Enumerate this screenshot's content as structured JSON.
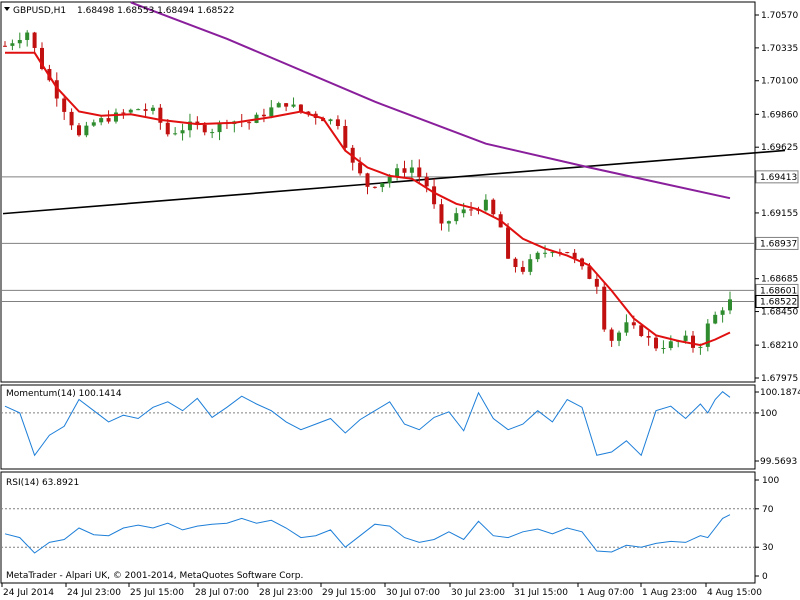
{
  "main_panel": {
    "header_symbol": "GBPUSD,H1",
    "header_ohlc": "1.68498 1.68553 1.68494 1.68522",
    "price_ticks": [
      "1.70570",
      "1.70335",
      "1.70100",
      "1.69860",
      "1.69625",
      "1.69390",
      "1.69155",
      "1.68920",
      "1.68685",
      "1.68450",
      "1.68210",
      "1.67975"
    ],
    "horizontal_levels": [
      {
        "price": 1.69413,
        "label": "1.69413"
      },
      {
        "price": 1.68937,
        "label": "1.68937"
      },
      {
        "price": 1.68601,
        "label": "1.68601"
      }
    ],
    "current_price": {
      "price": 1.68522,
      "label": "1.68522"
    },
    "ylim": [
      1.6788,
      1.7069
    ]
  },
  "momentum_panel": {
    "title": "Momentum(14) 100.1414",
    "ticks": [
      "100.1874",
      "100",
      "99.5693"
    ],
    "ylim": [
      99.55,
      100.22
    ],
    "reference_level": 100
  },
  "rsi_panel": {
    "title": "RSI(14) 63.8921",
    "ticks": [
      "100",
      "70",
      "30",
      "0"
    ],
    "levels": [
      70,
      30
    ]
  },
  "footer": {
    "copyright": "MetaTrader - Alpari UK, © 2001-2014, MetaQuotes Software Corp."
  },
  "time_axis": {
    "labels": [
      "24 Jul 2014",
      "24 Jul 23:00",
      "25 Jul 15:00",
      "28 Jul 07:00",
      "28 Jul 23:00",
      "29 Jul 15:00",
      "30 Jul 07:00",
      "30 Jul 23:00",
      "31 Jul 15:00",
      "1 Aug 07:00",
      "1 Aug 23:00",
      "4 Aug 15:00"
    ]
  },
  "colors": {
    "bull_candle": "#2e8b2e",
    "bear_candle": "#c01010",
    "ma_fast": "#e01010",
    "ma_slow": "#8a1f9c",
    "trendline": "#000000",
    "oscillator": "#1e7fd8",
    "level_line": "#808080"
  },
  "chart_data": {
    "type": "candlestick",
    "symbol": "GBPUSD",
    "timeframe": "H1",
    "last_close": 1.68522,
    "close_path": [
      [
        0,
        1.7035
      ],
      [
        3,
        1.7045
      ],
      [
        5,
        1.702
      ],
      [
        8,
        1.699
      ],
      [
        10,
        1.697
      ],
      [
        12,
        1.698
      ],
      [
        15,
        1.6985
      ],
      [
        18,
        1.699
      ],
      [
        20,
        1.6988
      ],
      [
        22,
        1.6972
      ],
      [
        25,
        1.6978
      ],
      [
        28,
        1.6975
      ],
      [
        30,
        1.6982
      ],
      [
        33,
        1.698
      ],
      [
        36,
        1.699
      ],
      [
        38,
        1.6994
      ],
      [
        40,
        1.6988
      ],
      [
        42,
        1.6985
      ],
      [
        45,
        1.698
      ],
      [
        47,
        1.695
      ],
      [
        49,
        1.6935
      ],
      [
        51,
        1.6938
      ],
      [
        53,
        1.6945
      ],
      [
        55,
        1.6948
      ],
      [
        57,
        1.6935
      ],
      [
        58,
        1.692
      ],
      [
        59,
        1.6905
      ],
      [
        61,
        1.6915
      ],
      [
        63,
        1.6918
      ],
      [
        65,
        1.6922
      ],
      [
        67,
        1.6905
      ],
      [
        68,
        1.688
      ],
      [
        70,
        1.6875
      ],
      [
        72,
        1.6885
      ],
      [
        74,
        1.689
      ],
      [
        76,
        1.6888
      ],
      [
        78,
        1.6875
      ],
      [
        80,
        1.6865
      ],
      [
        81,
        1.6835
      ],
      [
        82,
        1.6825
      ],
      [
        84,
        1.6835
      ],
      [
        86,
        1.683
      ],
      [
        88,
        1.682
      ],
      [
        90,
        1.6822
      ],
      [
        92,
        1.6825
      ],
      [
        93,
        1.682
      ],
      [
        94,
        1.6822
      ],
      [
        95,
        1.6835
      ],
      [
        96,
        1.6842
      ],
      [
        97,
        1.6848
      ],
      [
        98,
        1.68522
      ]
    ],
    "ma_fast_path": [
      [
        0,
        1.703
      ],
      [
        4,
        1.703
      ],
      [
        7,
        1.7005
      ],
      [
        10,
        1.6988
      ],
      [
        13,
        1.6985
      ],
      [
        17,
        1.6986
      ],
      [
        21,
        1.6982
      ],
      [
        26,
        1.6979
      ],
      [
        31,
        1.698
      ],
      [
        36,
        1.6984
      ],
      [
        40,
        1.6988
      ],
      [
        43,
        1.6983
      ],
      [
        46,
        1.696
      ],
      [
        49,
        1.6948
      ],
      [
        52,
        1.6942
      ],
      [
        55,
        1.694
      ],
      [
        58,
        1.693
      ],
      [
        61,
        1.6922
      ],
      [
        64,
        1.6918
      ],
      [
        67,
        1.691
      ],
      [
        70,
        1.6897
      ],
      [
        73,
        1.689
      ],
      [
        76,
        1.6885
      ],
      [
        79,
        1.6878
      ],
      [
        82,
        1.686
      ],
      [
        85,
        1.684
      ],
      [
        88,
        1.6828
      ],
      [
        91,
        1.6824
      ],
      [
        94,
        1.6821
      ],
      [
        96,
        1.6825
      ],
      [
        98,
        1.683
      ]
    ],
    "ma_slow_path": [
      [
        17,
        1.7066
      ],
      [
        30,
        1.704
      ],
      [
        50,
        1.6995
      ],
      [
        65,
        1.6965
      ],
      [
        79,
        1.6948
      ],
      [
        98,
        1.6926
      ]
    ],
    "trendline": [
      [
        0,
        1.6915
      ],
      [
        98,
        1.6957
      ]
    ],
    "momentum": [
      [
        0,
        100.06
      ],
      [
        2,
        100.0
      ],
      [
        4,
        99.62
      ],
      [
        6,
        99.8
      ],
      [
        8,
        99.88
      ],
      [
        10,
        100.12
      ],
      [
        12,
        100.02
      ],
      [
        14,
        99.92
      ],
      [
        16,
        99.98
      ],
      [
        18,
        99.95
      ],
      [
        20,
        100.05
      ],
      [
        22,
        100.1
      ],
      [
        24,
        100.02
      ],
      [
        26,
        100.13
      ],
      [
        28,
        99.96
      ],
      [
        30,
        100.05
      ],
      [
        32,
        100.15
      ],
      [
        34,
        100.08
      ],
      [
        36,
        100.02
      ],
      [
        38,
        99.92
      ],
      [
        40,
        99.85
      ],
      [
        42,
        99.9
      ],
      [
        44,
        99.95
      ],
      [
        46,
        99.82
      ],
      [
        48,
        99.94
      ],
      [
        50,
        100.02
      ],
      [
        52,
        100.1
      ],
      [
        54,
        99.9
      ],
      [
        56,
        99.85
      ],
      [
        58,
        99.96
      ],
      [
        60,
        100.01
      ],
      [
        62,
        99.84
      ],
      [
        64,
        100.18
      ],
      [
        66,
        99.95
      ],
      [
        68,
        99.85
      ],
      [
        70,
        99.9
      ],
      [
        72,
        100.02
      ],
      [
        74,
        99.92
      ],
      [
        76,
        100.12
      ],
      [
        78,
        100.05
      ],
      [
        80,
        99.62
      ],
      [
        82,
        99.65
      ],
      [
        84,
        99.75
      ],
      [
        86,
        99.62
      ],
      [
        88,
        100.02
      ],
      [
        90,
        100.06
      ],
      [
        92,
        99.95
      ],
      [
        94,
        100.08
      ],
      [
        95,
        100.0
      ],
      [
        96,
        100.12
      ],
      [
        97,
        100.19
      ],
      [
        98,
        100.14
      ]
    ],
    "rsi": [
      [
        0,
        44
      ],
      [
        2,
        40
      ],
      [
        4,
        24
      ],
      [
        6,
        35
      ],
      [
        8,
        38
      ],
      [
        10,
        50
      ],
      [
        12,
        43
      ],
      [
        14,
        42
      ],
      [
        16,
        50
      ],
      [
        18,
        53
      ],
      [
        20,
        50
      ],
      [
        22,
        55
      ],
      [
        24,
        48
      ],
      [
        26,
        52
      ],
      [
        28,
        54
      ],
      [
        30,
        55
      ],
      [
        32,
        60
      ],
      [
        34,
        55
      ],
      [
        36,
        58
      ],
      [
        38,
        50
      ],
      [
        40,
        40
      ],
      [
        42,
        42
      ],
      [
        44,
        48
      ],
      [
        46,
        30
      ],
      [
        48,
        42
      ],
      [
        50,
        54
      ],
      [
        52,
        52
      ],
      [
        54,
        40
      ],
      [
        56,
        35
      ],
      [
        58,
        38
      ],
      [
        60,
        46
      ],
      [
        62,
        38
      ],
      [
        64,
        57
      ],
      [
        66,
        42
      ],
      [
        68,
        40
      ],
      [
        70,
        46
      ],
      [
        72,
        49
      ],
      [
        74,
        44
      ],
      [
        76,
        50
      ],
      [
        78,
        46
      ],
      [
        80,
        26
      ],
      [
        82,
        25
      ],
      [
        84,
        32
      ],
      [
        86,
        30
      ],
      [
        88,
        34
      ],
      [
        90,
        36
      ],
      [
        92,
        35
      ],
      [
        94,
        42
      ],
      [
        95,
        40
      ],
      [
        96,
        50
      ],
      [
        97,
        60
      ],
      [
        98,
        63.89
      ]
    ]
  }
}
